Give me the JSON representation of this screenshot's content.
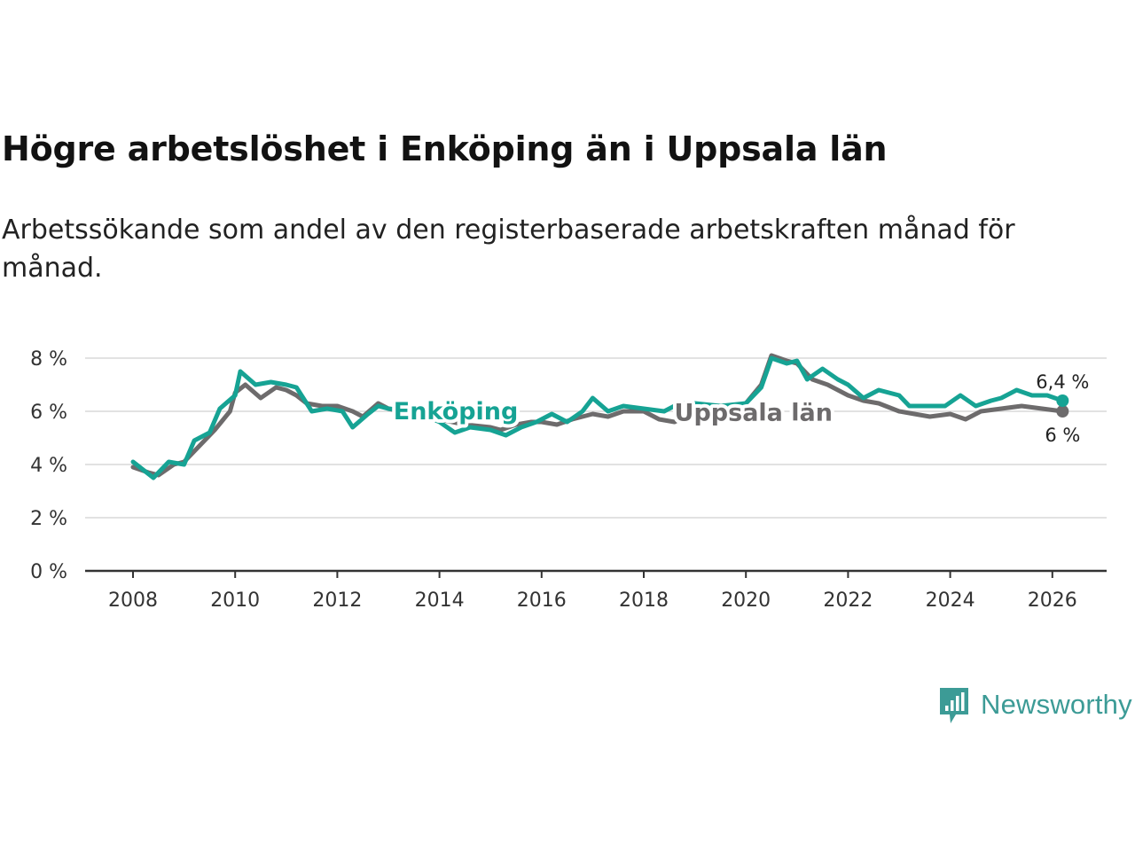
{
  "title": "Högre arbetslöshet i Enköping än i Uppsala län",
  "subtitle": "Arbetssökande som andel av den registerbaserade arbetskraften månad för månad.",
  "brand": {
    "name": "Newsworthy",
    "icon": "newsworthy-logo-icon",
    "color": "#3c9b96"
  },
  "chart_data": {
    "type": "line",
    "x_ticks": [
      2008,
      2010,
      2012,
      2014,
      2016,
      2018,
      2020,
      2022,
      2024,
      2026
    ],
    "y_ticks": [
      {
        "value": 0,
        "label": "0 %"
      },
      {
        "value": 2,
        "label": "2 %"
      },
      {
        "value": 4,
        "label": "4 %"
      },
      {
        "value": 6,
        "label": "6 %"
      },
      {
        "value": 8,
        "label": "8 %"
      }
    ],
    "xlim": [
      2008,
      2026.2
    ],
    "ylim": [
      0,
      8
    ],
    "grid": true,
    "series": [
      {
        "name": "Uppsala län",
        "color": "#6d6b6c",
        "end_label": "6 %",
        "points": [
          [
            2008.0,
            3.9
          ],
          [
            2008.3,
            3.7
          ],
          [
            2008.5,
            3.6
          ],
          [
            2008.8,
            4.0
          ],
          [
            2009.0,
            4.1
          ],
          [
            2009.3,
            4.7
          ],
          [
            2009.6,
            5.3
          ],
          [
            2009.9,
            6.0
          ],
          [
            2010.0,
            6.7
          ],
          [
            2010.2,
            7.0
          ],
          [
            2010.5,
            6.5
          ],
          [
            2010.8,
            6.9
          ],
          [
            2011.0,
            6.8
          ],
          [
            2011.2,
            6.6
          ],
          [
            2011.4,
            6.3
          ],
          [
            2011.7,
            6.2
          ],
          [
            2012.0,
            6.2
          ],
          [
            2012.3,
            6.0
          ],
          [
            2012.5,
            5.8
          ],
          [
            2012.8,
            6.3
          ],
          [
            2013.0,
            6.1
          ],
          [
            2013.5,
            5.9
          ],
          [
            2014.0,
            5.7
          ],
          [
            2014.5,
            5.5
          ],
          [
            2015.0,
            5.4
          ],
          [
            2015.2,
            5.3
          ],
          [
            2015.5,
            5.5
          ],
          [
            2015.8,
            5.6
          ],
          [
            2016.0,
            5.6
          ],
          [
            2016.3,
            5.5
          ],
          [
            2016.6,
            5.7
          ],
          [
            2017.0,
            5.9
          ],
          [
            2017.3,
            5.8
          ],
          [
            2017.6,
            6.0
          ],
          [
            2018.0,
            6.0
          ],
          [
            2018.3,
            5.7
          ],
          [
            2018.6,
            5.6
          ],
          [
            2018.8,
            5.8
          ],
          [
            2019.0,
            5.9
          ],
          [
            2019.5,
            6.1
          ],
          [
            2020.0,
            6.3
          ],
          [
            2020.3,
            7.0
          ],
          [
            2020.5,
            8.1
          ],
          [
            2020.8,
            7.9
          ],
          [
            2021.0,
            7.8
          ],
          [
            2021.3,
            7.2
          ],
          [
            2021.6,
            7.0
          ],
          [
            2022.0,
            6.6
          ],
          [
            2022.3,
            6.4
          ],
          [
            2022.6,
            6.3
          ],
          [
            2023.0,
            6.0
          ],
          [
            2023.3,
            5.9
          ],
          [
            2023.6,
            5.8
          ],
          [
            2024.0,
            5.9
          ],
          [
            2024.3,
            5.7
          ],
          [
            2024.6,
            6.0
          ],
          [
            2025.0,
            6.1
          ],
          [
            2025.4,
            6.2
          ],
          [
            2025.8,
            6.1
          ],
          [
            2026.2,
            6.0
          ]
        ]
      },
      {
        "name": "Enköping",
        "color": "#16a394",
        "end_label": "6,4 %",
        "points": [
          [
            2008.0,
            4.1
          ],
          [
            2008.2,
            3.8
          ],
          [
            2008.4,
            3.5
          ],
          [
            2008.7,
            4.1
          ],
          [
            2009.0,
            4.0
          ],
          [
            2009.2,
            4.9
          ],
          [
            2009.5,
            5.2
          ],
          [
            2009.7,
            6.1
          ],
          [
            2010.0,
            6.6
          ],
          [
            2010.1,
            7.5
          ],
          [
            2010.4,
            7.0
          ],
          [
            2010.7,
            7.1
          ],
          [
            2011.0,
            7.0
          ],
          [
            2011.2,
            6.9
          ],
          [
            2011.5,
            6.0
          ],
          [
            2011.8,
            6.1
          ],
          [
            2012.1,
            6.0
          ],
          [
            2012.3,
            5.4
          ],
          [
            2012.6,
            5.9
          ],
          [
            2012.8,
            6.2
          ],
          [
            2013.0,
            6.1
          ],
          [
            2013.5,
            6.0
          ],
          [
            2014.0,
            5.6
          ],
          [
            2014.3,
            5.2
          ],
          [
            2014.6,
            5.4
          ],
          [
            2015.0,
            5.3
          ],
          [
            2015.3,
            5.1
          ],
          [
            2015.6,
            5.4
          ],
          [
            2015.9,
            5.6
          ],
          [
            2016.2,
            5.9
          ],
          [
            2016.5,
            5.6
          ],
          [
            2016.8,
            6.0
          ],
          [
            2017.0,
            6.5
          ],
          [
            2017.3,
            6.0
          ],
          [
            2017.6,
            6.2
          ],
          [
            2018.0,
            6.1
          ],
          [
            2018.4,
            6.0
          ],
          [
            2018.7,
            6.3
          ],
          [
            2019.0,
            6.3
          ],
          [
            2019.5,
            6.2
          ],
          [
            2020.0,
            6.3
          ],
          [
            2020.3,
            6.9
          ],
          [
            2020.5,
            8.0
          ],
          [
            2020.8,
            7.8
          ],
          [
            2021.0,
            7.9
          ],
          [
            2021.2,
            7.2
          ],
          [
            2021.5,
            7.6
          ],
          [
            2021.8,
            7.2
          ],
          [
            2022.0,
            7.0
          ],
          [
            2022.3,
            6.5
          ],
          [
            2022.6,
            6.8
          ],
          [
            2023.0,
            6.6
          ],
          [
            2023.2,
            6.2
          ],
          [
            2023.6,
            6.2
          ],
          [
            2023.9,
            6.2
          ],
          [
            2024.2,
            6.6
          ],
          [
            2024.5,
            6.2
          ],
          [
            2024.8,
            6.4
          ],
          [
            2025.0,
            6.5
          ],
          [
            2025.3,
            6.8
          ],
          [
            2025.6,
            6.6
          ],
          [
            2025.9,
            6.6
          ],
          [
            2026.2,
            6.4
          ]
        ]
      }
    ]
  }
}
